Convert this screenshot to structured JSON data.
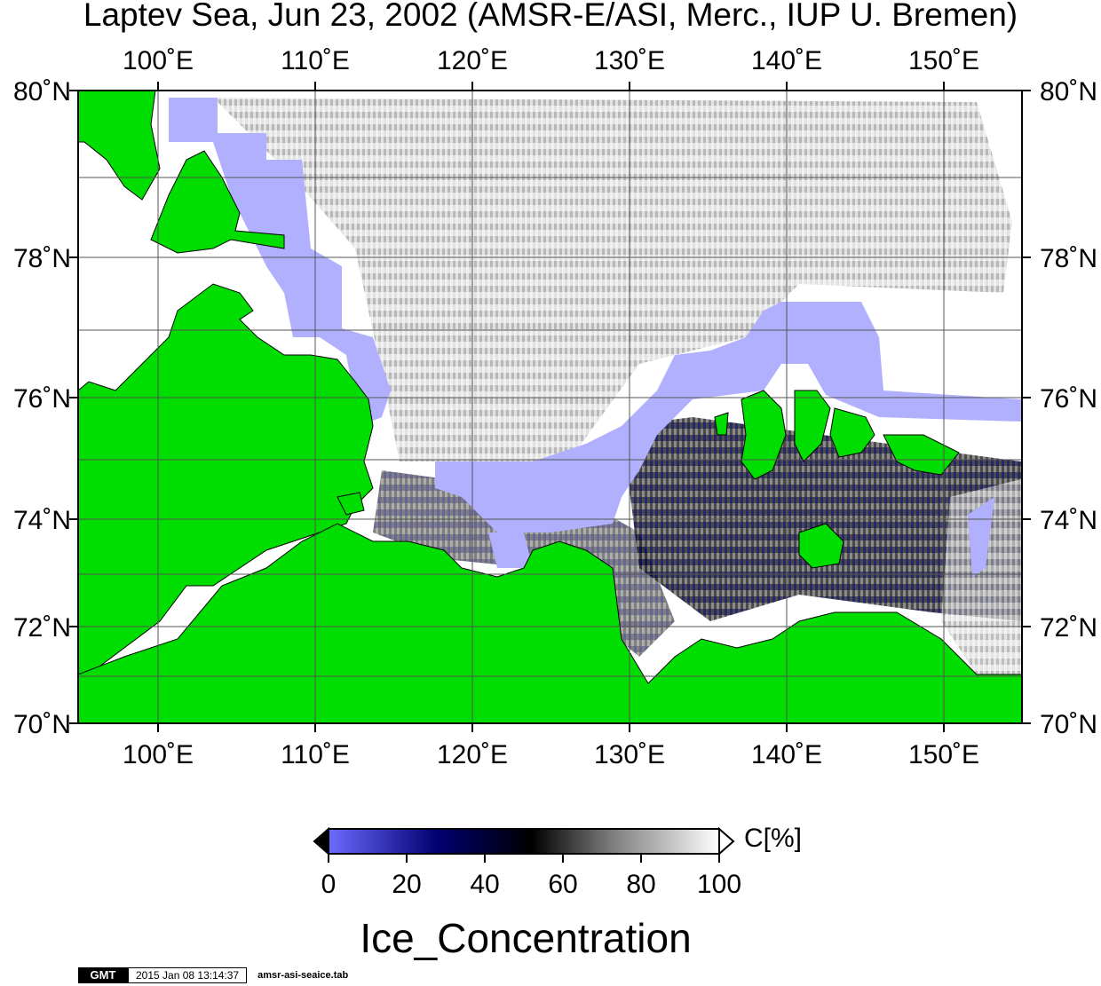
{
  "title": "Laptev Sea, Jun 23, 2002 (AMSR-E/ASI, Merc., IUP U. Bremen)",
  "map": {
    "lon_labels": [
      "100˚E",
      "110˚E",
      "120˚E",
      "130˚E",
      "140˚E",
      "150˚E"
    ],
    "lat_labels": [
      "80˚N",
      "78˚N",
      "76˚N",
      "74˚N",
      "72˚N",
      "70˚N"
    ],
    "land_color": "#00dd00",
    "open_water_color": "#ffffff"
  },
  "colorbar": {
    "ticks": [
      "0",
      "20",
      "40",
      "60",
      "80",
      "100"
    ],
    "unit": "C[%]",
    "label": "Ice_Concentration",
    "colors": [
      "#6b6bff",
      "#000070",
      "#000000",
      "#7a7a7a",
      "#ffffff"
    ]
  },
  "footer": {
    "logo": "GMT",
    "timestamp": "2015 Jan 08 13:14:37",
    "filename": "amsr-asi-seaice.tab"
  }
}
